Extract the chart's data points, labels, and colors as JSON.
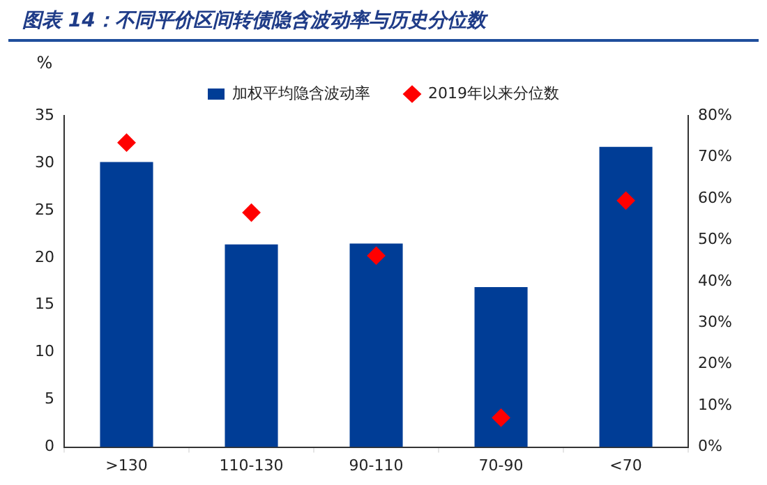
{
  "chart_data": {
    "type": "bar",
    "title": "图表 14：不同平价区间转债隐含波动率与历史分位数",
    "ylabel": "%",
    "categories": [
      ">130",
      "110-130",
      "90-110",
      "70-90",
      "<70"
    ],
    "series": [
      {
        "name": "加权平均隐含波动率",
        "type": "bar",
        "color": "#003d96",
        "values": [
          30.1,
          21.4,
          21.5,
          16.9,
          31.7
        ]
      },
      {
        "name": "2019年以来分位数",
        "type": "scatter",
        "axis": "y2",
        "marker": "diamond",
        "color": "#ff0000",
        "values": [
          73.5,
          56.6,
          46.2,
          7.1,
          59.5
        ]
      }
    ],
    "ylim": [
      0,
      35
    ],
    "yticks": [
      0,
      5,
      10,
      15,
      20,
      25,
      30,
      35
    ],
    "y2lim": [
      0,
      80
    ],
    "y2ticks": [
      {
        "value": 0,
        "label": "0%"
      },
      {
        "value": 10,
        "label": "10%"
      },
      {
        "value": 20,
        "label": "20%"
      },
      {
        "value": 30,
        "label": "30%"
      },
      {
        "value": 40,
        "label": "40%"
      },
      {
        "value": 50,
        "label": "50%"
      },
      {
        "value": 60,
        "label": "60%"
      },
      {
        "value": 70,
        "label": "70%"
      },
      {
        "value": 80,
        "label": "80%"
      }
    ],
    "grid": false,
    "legend": "top"
  }
}
